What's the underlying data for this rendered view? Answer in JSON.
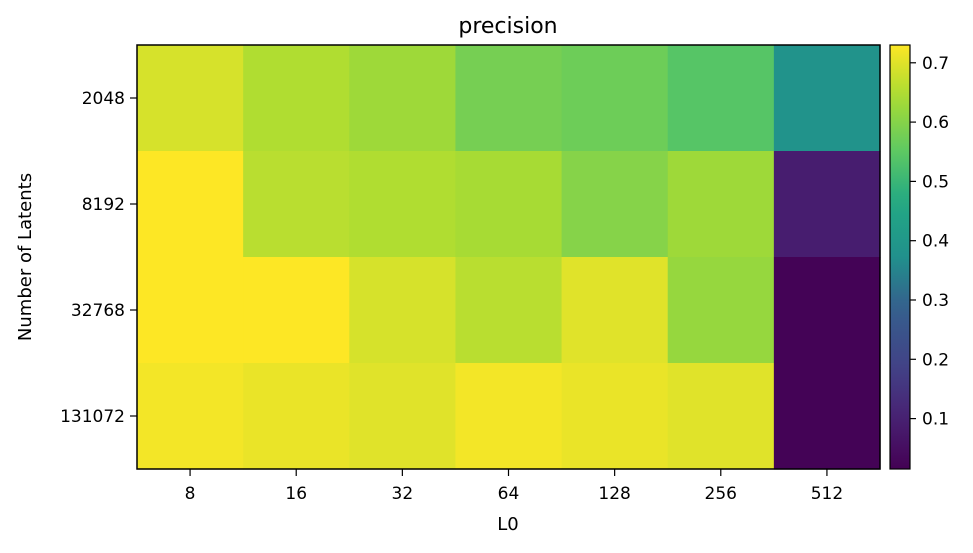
{
  "chart_data": {
    "type": "heatmap",
    "title": "precision",
    "xlabel": "L0",
    "ylabel": "Number of Latents",
    "x_categories": [
      "8",
      "16",
      "32",
      "64",
      "128",
      "256",
      "512"
    ],
    "y_categories": [
      "2048",
      "8192",
      "32768",
      "131072"
    ],
    "values": [
      [
        0.69,
        0.65,
        0.63,
        0.58,
        0.57,
        0.54,
        0.38
      ],
      [
        0.73,
        0.66,
        0.65,
        0.64,
        0.6,
        0.63,
        0.09
      ],
      [
        0.73,
        0.73,
        0.69,
        0.66,
        0.7,
        0.62,
        0.02
      ],
      [
        0.72,
        0.71,
        0.7,
        0.72,
        0.71,
        0.7,
        0.02
      ]
    ],
    "colormap": "viridis",
    "colorbar": {
      "vmin": 0.015,
      "vmax": 0.73,
      "ticks": [
        0.1,
        0.2,
        0.3,
        0.4,
        0.5,
        0.6,
        0.7
      ],
      "tick_labels": [
        "0.1",
        "0.2",
        "0.3",
        "0.4",
        "0.5",
        "0.6",
        "0.7"
      ]
    },
    "grid": false
  }
}
